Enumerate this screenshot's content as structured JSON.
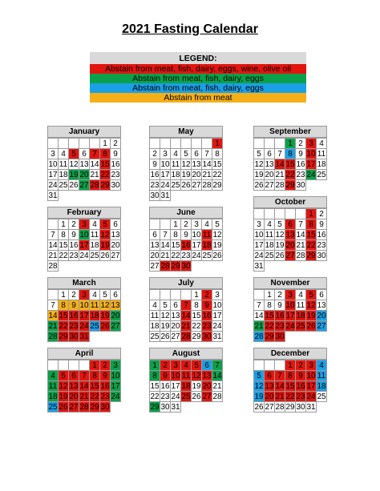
{
  "title": "2021 Fasting Calendar",
  "legend": {
    "header": "LEGEND:",
    "items": [
      {
        "label": "Abstain from meat, fish, dairy, eggs, wine, olive oil",
        "color": "#e2150f"
      },
      {
        "label": "Abstain from meat, fish, dairy, eggs",
        "color": "#0aa14a"
      },
      {
        "label": "Abstain from meat, fish, dairy, eggs",
        "color": "#1aa0e6"
      },
      {
        "label": "Abstain from meat",
        "color": "#f5b018"
      }
    ]
  },
  "colors": {
    "r": "#e2150f",
    "g": "#0aa14a",
    "b": "#1aa0e6",
    "o": "#f5b018"
  },
  "months": [
    {
      "name": "January",
      "offset": 5,
      "days": [
        [
          1,
          ""
        ],
        [
          2,
          ""
        ],
        [
          3,
          ""
        ],
        [
          4,
          ""
        ],
        [
          5,
          "r"
        ],
        [
          6,
          ""
        ],
        [
          7,
          "r"
        ],
        [
          8,
          "r"
        ],
        [
          9,
          ""
        ],
        [
          10,
          ""
        ],
        [
          11,
          ""
        ],
        [
          12,
          ""
        ],
        [
          13,
          ""
        ],
        [
          14,
          ""
        ],
        [
          15,
          "r"
        ],
        [
          16,
          ""
        ],
        [
          17,
          ""
        ],
        [
          18,
          ""
        ],
        [
          19,
          "g"
        ],
        [
          20,
          "g"
        ],
        [
          21,
          ""
        ],
        [
          22,
          "r"
        ],
        [
          23,
          ""
        ],
        [
          24,
          ""
        ],
        [
          25,
          ""
        ],
        [
          26,
          ""
        ],
        [
          27,
          "g"
        ],
        [
          28,
          "r"
        ],
        [
          29,
          "r"
        ],
        [
          30,
          ""
        ],
        [
          31,
          ""
        ]
      ]
    },
    {
      "name": "February",
      "offset": 1,
      "days": [
        [
          1,
          ""
        ],
        [
          2,
          ""
        ],
        [
          3,
          "r"
        ],
        [
          4,
          ""
        ],
        [
          5,
          "r"
        ],
        [
          6,
          ""
        ],
        [
          7,
          ""
        ],
        [
          8,
          ""
        ],
        [
          9,
          ""
        ],
        [
          10,
          "g"
        ],
        [
          11,
          ""
        ],
        [
          12,
          "r"
        ],
        [
          13,
          ""
        ],
        [
          14,
          ""
        ],
        [
          15,
          ""
        ],
        [
          16,
          ""
        ],
        [
          17,
          "r"
        ],
        [
          18,
          ""
        ],
        [
          19,
          "r"
        ],
        [
          20,
          ""
        ],
        [
          21,
          ""
        ],
        [
          22,
          ""
        ],
        [
          23,
          ""
        ],
        [
          24,
          ""
        ],
        [
          25,
          ""
        ],
        [
          26,
          ""
        ],
        [
          27,
          ""
        ],
        [
          28,
          ""
        ]
      ]
    },
    {
      "name": "March",
      "offset": 1,
      "days": [
        [
          1,
          ""
        ],
        [
          2,
          ""
        ],
        [
          3,
          "r"
        ],
        [
          4,
          ""
        ],
        [
          5,
          ""
        ],
        [
          6,
          ""
        ],
        [
          7,
          ""
        ],
        [
          8,
          "o"
        ],
        [
          9,
          "o"
        ],
        [
          10,
          "o"
        ],
        [
          11,
          "o"
        ],
        [
          12,
          "o"
        ],
        [
          13,
          "o"
        ],
        [
          14,
          "o"
        ],
        [
          15,
          "r"
        ],
        [
          16,
          "r"
        ],
        [
          17,
          "r"
        ],
        [
          18,
          "r"
        ],
        [
          19,
          "r"
        ],
        [
          20,
          "g"
        ],
        [
          21,
          "g"
        ],
        [
          22,
          "r"
        ],
        [
          23,
          "r"
        ],
        [
          24,
          "r"
        ],
        [
          25,
          "b"
        ],
        [
          26,
          "r"
        ],
        [
          27,
          "g"
        ],
        [
          28,
          "g"
        ],
        [
          29,
          "r"
        ],
        [
          30,
          "r"
        ],
        [
          31,
          "r"
        ]
      ]
    },
    {
      "name": "April",
      "offset": 4,
      "days": [
        [
          1,
          "r"
        ],
        [
          2,
          "r"
        ],
        [
          3,
          "g"
        ],
        [
          4,
          "g"
        ],
        [
          5,
          "r"
        ],
        [
          6,
          "r"
        ],
        [
          7,
          "r"
        ],
        [
          8,
          "r"
        ],
        [
          9,
          "r"
        ],
        [
          10,
          "g"
        ],
        [
          11,
          "g"
        ],
        [
          12,
          "r"
        ],
        [
          13,
          "r"
        ],
        [
          14,
          "r"
        ],
        [
          15,
          "r"
        ],
        [
          16,
          "r"
        ],
        [
          17,
          "g"
        ],
        [
          18,
          "g"
        ],
        [
          19,
          "r"
        ],
        [
          20,
          "r"
        ],
        [
          21,
          "r"
        ],
        [
          22,
          "r"
        ],
        [
          23,
          "r"
        ],
        [
          24,
          "g"
        ],
        [
          25,
          "b"
        ],
        [
          26,
          "r"
        ],
        [
          27,
          "r"
        ],
        [
          28,
          "r"
        ],
        [
          29,
          "r"
        ],
        [
          30,
          "r"
        ]
      ]
    },
    {
      "name": "May",
      "offset": 6,
      "days": [
        [
          1,
          "r"
        ],
        [
          2,
          ""
        ],
        [
          3,
          ""
        ],
        [
          4,
          ""
        ],
        [
          5,
          ""
        ],
        [
          6,
          ""
        ],
        [
          7,
          ""
        ],
        [
          8,
          ""
        ],
        [
          9,
          ""
        ],
        [
          10,
          ""
        ],
        [
          11,
          ""
        ],
        [
          12,
          ""
        ],
        [
          13,
          ""
        ],
        [
          14,
          ""
        ],
        [
          15,
          ""
        ],
        [
          16,
          ""
        ],
        [
          17,
          ""
        ],
        [
          18,
          ""
        ],
        [
          19,
          ""
        ],
        [
          20,
          ""
        ],
        [
          21,
          ""
        ],
        [
          22,
          ""
        ],
        [
          23,
          ""
        ],
        [
          24,
          ""
        ],
        [
          25,
          ""
        ],
        [
          26,
          ""
        ],
        [
          27,
          ""
        ],
        [
          28,
          ""
        ],
        [
          29,
          ""
        ],
        [
          30,
          ""
        ],
        [
          31,
          ""
        ]
      ]
    },
    {
      "name": "June",
      "offset": 2,
      "days": [
        [
          1,
          ""
        ],
        [
          2,
          ""
        ],
        [
          3,
          ""
        ],
        [
          4,
          ""
        ],
        [
          5,
          ""
        ],
        [
          6,
          ""
        ],
        [
          7,
          ""
        ],
        [
          8,
          ""
        ],
        [
          9,
          ""
        ],
        [
          10,
          ""
        ],
        [
          11,
          "r"
        ],
        [
          12,
          ""
        ],
        [
          13,
          ""
        ],
        [
          14,
          ""
        ],
        [
          15,
          ""
        ],
        [
          16,
          "r"
        ],
        [
          17,
          ""
        ],
        [
          18,
          "r"
        ],
        [
          19,
          ""
        ],
        [
          20,
          ""
        ],
        [
          21,
          ""
        ],
        [
          22,
          ""
        ],
        [
          23,
          ""
        ],
        [
          24,
          ""
        ],
        [
          25,
          ""
        ],
        [
          26,
          ""
        ],
        [
          27,
          ""
        ],
        [
          28,
          "r"
        ],
        [
          29,
          "r"
        ],
        [
          30,
          "r"
        ]
      ]
    },
    {
      "name": "July",
      "offset": 4,
      "days": [
        [
          1,
          ""
        ],
        [
          2,
          "r"
        ],
        [
          3,
          ""
        ],
        [
          4,
          ""
        ],
        [
          5,
          ""
        ],
        [
          6,
          ""
        ],
        [
          7,
          "r"
        ],
        [
          8,
          ""
        ],
        [
          9,
          "r"
        ],
        [
          10,
          ""
        ],
        [
          11,
          ""
        ],
        [
          12,
          ""
        ],
        [
          13,
          ""
        ],
        [
          14,
          "r"
        ],
        [
          15,
          ""
        ],
        [
          16,
          "r"
        ],
        [
          17,
          ""
        ],
        [
          18,
          ""
        ],
        [
          19,
          ""
        ],
        [
          20,
          ""
        ],
        [
          21,
          "r"
        ],
        [
          22,
          ""
        ],
        [
          23,
          "r"
        ],
        [
          24,
          ""
        ],
        [
          25,
          ""
        ],
        [
          26,
          ""
        ],
        [
          27,
          ""
        ],
        [
          28,
          "r"
        ],
        [
          29,
          ""
        ],
        [
          30,
          "r"
        ],
        [
          31,
          ""
        ]
      ]
    },
    {
      "name": "August",
      "offset": 0,
      "days": [
        [
          1,
          "g"
        ],
        [
          2,
          "r"
        ],
        [
          3,
          "r"
        ],
        [
          4,
          "r"
        ],
        [
          5,
          "r"
        ],
        [
          6,
          "b"
        ],
        [
          7,
          "g"
        ],
        [
          8,
          "g"
        ],
        [
          9,
          "r"
        ],
        [
          10,
          "r"
        ],
        [
          11,
          "r"
        ],
        [
          12,
          "r"
        ],
        [
          13,
          "r"
        ],
        [
          14,
          "g"
        ],
        [
          15,
          ""
        ],
        [
          16,
          ""
        ],
        [
          17,
          ""
        ],
        [
          18,
          "r"
        ],
        [
          19,
          ""
        ],
        [
          20,
          "r"
        ],
        [
          21,
          ""
        ],
        [
          22,
          ""
        ],
        [
          23,
          ""
        ],
        [
          24,
          ""
        ],
        [
          25,
          "r"
        ],
        [
          26,
          ""
        ],
        [
          27,
          "r"
        ],
        [
          28,
          ""
        ],
        [
          29,
          "g"
        ],
        [
          30,
          ""
        ],
        [
          31,
          ""
        ]
      ]
    },
    {
      "name": "September",
      "offset": 3,
      "days": [
        [
          1,
          "g"
        ],
        [
          2,
          ""
        ],
        [
          3,
          "r"
        ],
        [
          4,
          ""
        ],
        [
          5,
          ""
        ],
        [
          6,
          ""
        ],
        [
          7,
          ""
        ],
        [
          8,
          "b"
        ],
        [
          9,
          ""
        ],
        [
          10,
          "r"
        ],
        [
          11,
          ""
        ],
        [
          12,
          ""
        ],
        [
          13,
          ""
        ],
        [
          14,
          "r"
        ],
        [
          15,
          "r"
        ],
        [
          16,
          ""
        ],
        [
          17,
          "r"
        ],
        [
          18,
          ""
        ],
        [
          19,
          ""
        ],
        [
          20,
          ""
        ],
        [
          21,
          ""
        ],
        [
          22,
          "r"
        ],
        [
          23,
          ""
        ],
        [
          24,
          "g"
        ],
        [
          25,
          ""
        ],
        [
          26,
          ""
        ],
        [
          27,
          ""
        ],
        [
          28,
          ""
        ],
        [
          29,
          "r"
        ],
        [
          30,
          ""
        ]
      ]
    },
    {
      "name": "October",
      "offset": 5,
      "days": [
        [
          1,
          "r"
        ],
        [
          2,
          ""
        ],
        [
          3,
          ""
        ],
        [
          4,
          ""
        ],
        [
          5,
          ""
        ],
        [
          6,
          "r"
        ],
        [
          7,
          ""
        ],
        [
          8,
          "r"
        ],
        [
          9,
          ""
        ],
        [
          10,
          ""
        ],
        [
          11,
          ""
        ],
        [
          12,
          ""
        ],
        [
          13,
          "r"
        ],
        [
          14,
          ""
        ],
        [
          15,
          "r"
        ],
        [
          16,
          ""
        ],
        [
          17,
          ""
        ],
        [
          18,
          ""
        ],
        [
          19,
          ""
        ],
        [
          20,
          "r"
        ],
        [
          21,
          ""
        ],
        [
          22,
          "r"
        ],
        [
          23,
          ""
        ],
        [
          24,
          ""
        ],
        [
          25,
          ""
        ],
        [
          26,
          ""
        ],
        [
          27,
          "r"
        ],
        [
          28,
          ""
        ],
        [
          29,
          "r"
        ],
        [
          30,
          ""
        ],
        [
          31,
          ""
        ]
      ]
    },
    {
      "name": "November",
      "offset": 1,
      "days": [
        [
          1,
          ""
        ],
        [
          2,
          ""
        ],
        [
          3,
          "r"
        ],
        [
          4,
          ""
        ],
        [
          5,
          "r"
        ],
        [
          6,
          ""
        ],
        [
          7,
          ""
        ],
        [
          8,
          ""
        ],
        [
          9,
          ""
        ],
        [
          10,
          "r"
        ],
        [
          11,
          ""
        ],
        [
          12,
          "r"
        ],
        [
          13,
          ""
        ],
        [
          14,
          ""
        ],
        [
          15,
          "r"
        ],
        [
          16,
          "r"
        ],
        [
          17,
          "r"
        ],
        [
          18,
          "r"
        ],
        [
          19,
          "r"
        ],
        [
          20,
          "b"
        ],
        [
          21,
          "g"
        ],
        [
          22,
          "r"
        ],
        [
          23,
          "r"
        ],
        [
          24,
          "r"
        ],
        [
          25,
          "r"
        ],
        [
          26,
          "r"
        ],
        [
          27,
          "b"
        ],
        [
          28,
          "b"
        ],
        [
          29,
          "r"
        ],
        [
          30,
          "r"
        ]
      ]
    },
    {
      "name": "December",
      "offset": 3,
      "days": [
        [
          1,
          "r"
        ],
        [
          2,
          "r"
        ],
        [
          3,
          "r"
        ],
        [
          4,
          "b"
        ],
        [
          5,
          "b"
        ],
        [
          6,
          "r"
        ],
        [
          7,
          "r"
        ],
        [
          8,
          "r"
        ],
        [
          9,
          "r"
        ],
        [
          10,
          "r"
        ],
        [
          11,
          "b"
        ],
        [
          12,
          "b"
        ],
        [
          13,
          "r"
        ],
        [
          14,
          "r"
        ],
        [
          15,
          "r"
        ],
        [
          16,
          "r"
        ],
        [
          17,
          "r"
        ],
        [
          18,
          "b"
        ],
        [
          19,
          "b"
        ],
        [
          20,
          "r"
        ],
        [
          21,
          "r"
        ],
        [
          22,
          "r"
        ],
        [
          23,
          "r"
        ],
        [
          24,
          "r"
        ],
        [
          25,
          ""
        ],
        [
          26,
          ""
        ],
        [
          27,
          ""
        ],
        [
          28,
          ""
        ],
        [
          29,
          ""
        ],
        [
          30,
          ""
        ],
        [
          31,
          ""
        ]
      ]
    }
  ]
}
